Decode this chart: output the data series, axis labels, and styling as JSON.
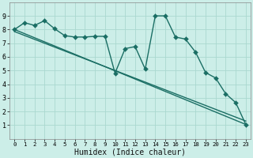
{
  "xlabel": "Humidex (Indice chaleur)",
  "background_color": "#cceee8",
  "grid_color": "#aad8d0",
  "line_color": "#1a6e64",
  "xlim": [
    -0.5,
    23.5
  ],
  "ylim": [
    0,
    10
  ],
  "xticks": [
    0,
    1,
    2,
    3,
    4,
    5,
    6,
    7,
    8,
    9,
    10,
    11,
    12,
    13,
    14,
    15,
    16,
    17,
    18,
    19,
    20,
    21,
    22,
    23
  ],
  "yticks": [
    1,
    2,
    3,
    4,
    5,
    6,
    7,
    8,
    9
  ],
  "series_jagged_x": [
    0,
    1,
    2,
    3,
    4,
    5,
    6,
    7,
    8,
    9,
    10,
    11,
    12,
    13,
    14,
    15,
    16,
    17,
    18,
    19,
    20,
    21,
    22,
    23
  ],
  "series_jagged_y": [
    8.0,
    8.5,
    8.3,
    8.65,
    8.05,
    7.55,
    7.45,
    7.45,
    7.5,
    7.5,
    4.8,
    6.6,
    6.75,
    5.1,
    9.0,
    9.0,
    7.45,
    7.3,
    6.35,
    4.85,
    4.45,
    3.3,
    2.65,
    1.05
  ],
  "trend1_x": [
    0,
    23
  ],
  "trend1_y": [
    8.0,
    1.05
  ],
  "trend2_x": [
    0,
    23
  ],
  "trend2_y": [
    7.85,
    1.3
  ],
  "marker_size": 3.0,
  "line_width": 1.0,
  "font_size_label": 7,
  "font_size_tick": 6
}
